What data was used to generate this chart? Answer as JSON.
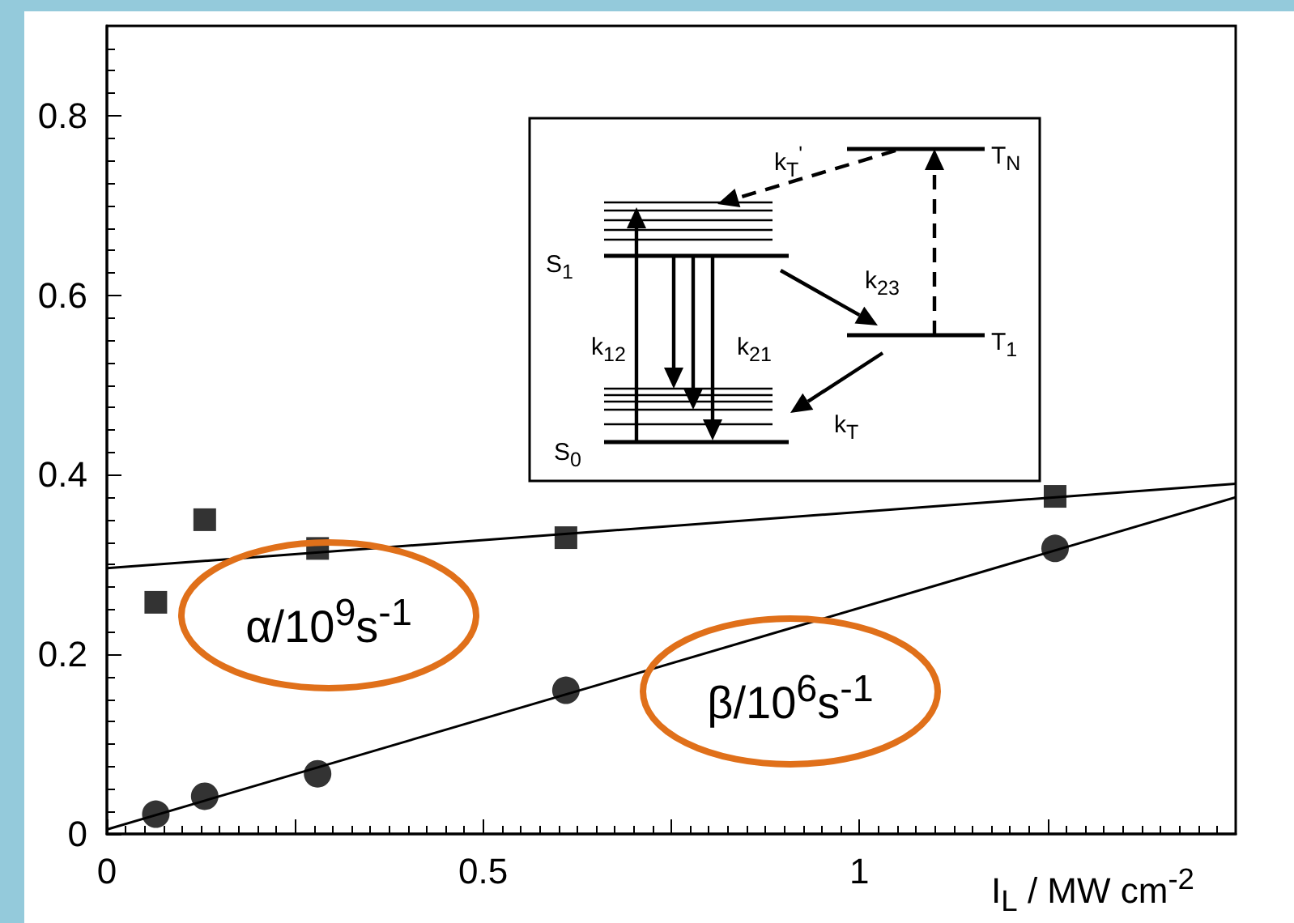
{
  "chart_data": {
    "type": "scatter",
    "xlabel": "I$_{L}$ / MW cm$^{-2}$",
    "xlim": [
      0,
      1.5
    ],
    "xticks": [
      0,
      {
        "value": 0.25,
        "label": null
      },
      0.5,
      {
        "value": 0.75,
        "label": null
      },
      1,
      {
        "value": 1.25,
        "label": null
      }
    ],
    "ylim": [
      0,
      0.9
    ],
    "yticks": [
      0,
      0.2,
      0.4,
      0.6,
      0.8
    ],
    "grid": false,
    "legend": false,
    "series": [
      {
        "name": "α/10$^{9}$s$^{-1}$",
        "marker": "square",
        "color": "#000000",
        "x": [
          0.065,
          0.13,
          0.28,
          0.61,
          1.26
        ],
        "values": [
          0.258,
          0.35,
          0.318,
          0.33,
          0.376
        ]
      },
      {
        "type": "line",
        "marker": "none",
        "color": "#000000",
        "x": [
          0,
          1.5
        ],
        "values": [
          0.296,
          0.39
        ]
      },
      {
        "name": "β/10$^{6}$s$^{-1}$",
        "marker": "circle",
        "color": "#000000",
        "x": [
          0.065,
          0.13,
          0.28,
          0.61,
          1.26
        ],
        "values": [
          0.022,
          0.042,
          0.067,
          0.16,
          0.318
        ]
      },
      {
        "type": "line",
        "marker": "none",
        "color": "#000000",
        "x": [
          0,
          1.5
        ],
        "values": [
          0.005,
          0.375
        ]
      }
    ],
    "annotations": [
      "T$_{N}$",
      "k$_{T}$$^{'}$",
      "S$_{1}$",
      "k$_{23}$",
      "k$_{12}$",
      "k$_{21}$",
      "T$_{1}$",
      "S$_{0}$",
      "k$_{T}$"
    ]
  }
}
